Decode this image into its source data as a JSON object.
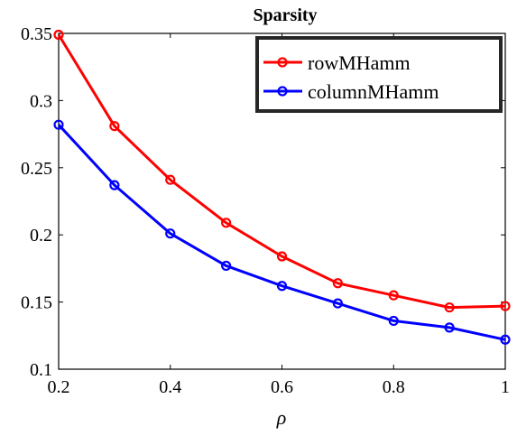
{
  "chart_data": {
    "type": "line",
    "title": "Sparsity",
    "xlabel": "ρ",
    "ylabel": "",
    "xlim": [
      0.2,
      1
    ],
    "ylim": [
      0.1,
      0.35
    ],
    "x": [
      0.2,
      0.3,
      0.4,
      0.5,
      0.6,
      0.7,
      0.8,
      0.9,
      1.0
    ],
    "xticks": [
      0.2,
      0.4,
      0.6,
      0.8,
      1
    ],
    "xtick_labels": [
      "0.2",
      "0.4",
      "0.6",
      "0.8",
      "1"
    ],
    "yticks": [
      0.1,
      0.15,
      0.2,
      0.25,
      0.3,
      0.35
    ],
    "ytick_labels": [
      "0.1",
      "0.15",
      "0.2",
      "0.25",
      "0.3",
      "0.35"
    ],
    "grid": false,
    "legend_position": "top-right",
    "series": [
      {
        "name": "rowMHamm",
        "color": "#ff0000",
        "marker": "circle",
        "values": [
          0.349,
          0.281,
          0.241,
          0.209,
          0.184,
          0.164,
          0.155,
          0.146,
          0.147
        ]
      },
      {
        "name": "columnMHamm",
        "color": "#0000ff",
        "marker": "circle",
        "values": [
          0.282,
          0.237,
          0.201,
          0.177,
          0.162,
          0.149,
          0.136,
          0.131,
          0.122
        ]
      }
    ]
  }
}
